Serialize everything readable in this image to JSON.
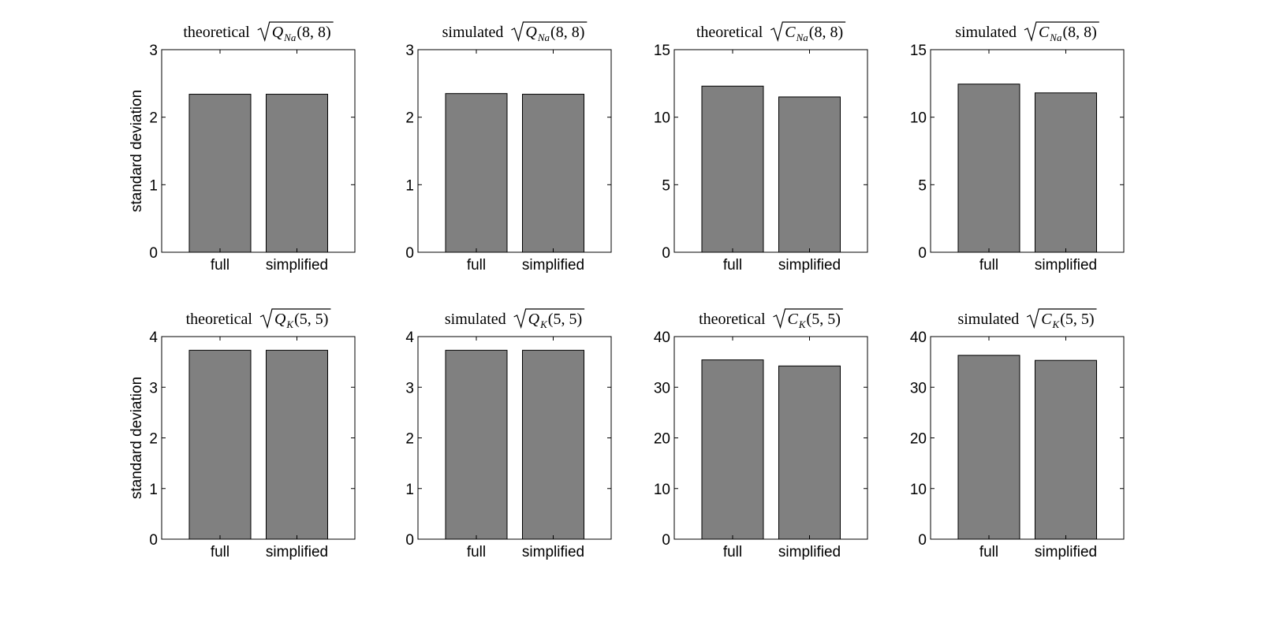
{
  "chart_data": [
    {
      "type": "bar",
      "title": {
        "word": "theoretical",
        "letter": "Q",
        "sub": "Na",
        "args": "(8, 8)"
      },
      "ylabel": "standard deviation",
      "categories": [
        "full",
        "simplified"
      ],
      "values": [
        2.34,
        2.34
      ],
      "ylim": [
        0,
        3
      ],
      "yticks": [
        "0",
        "1",
        "2",
        "3"
      ]
    },
    {
      "type": "bar",
      "title": {
        "word": "simulated",
        "letter": "Q",
        "sub": "Na",
        "args": "(8, 8)"
      },
      "ylabel": "",
      "categories": [
        "full",
        "simplified"
      ],
      "values": [
        2.35,
        2.34
      ],
      "ylim": [
        0,
        3
      ],
      "yticks": [
        "0",
        "1",
        "2",
        "3"
      ]
    },
    {
      "type": "bar",
      "title": {
        "word": "theoretical",
        "letter": "C",
        "sub": "Na",
        "args": "(8, 8)"
      },
      "ylabel": "",
      "categories": [
        "full",
        "simplified"
      ],
      "values": [
        12.3,
        11.5
      ],
      "ylim": [
        0,
        15
      ],
      "yticks": [
        "0",
        "5",
        "10",
        "15"
      ]
    },
    {
      "type": "bar",
      "title": {
        "word": "simulated",
        "letter": "C",
        "sub": "Na",
        "args": "(8, 8)"
      },
      "ylabel": "",
      "categories": [
        "full",
        "simplified"
      ],
      "values": [
        12.45,
        11.8
      ],
      "ylim": [
        0,
        15
      ],
      "yticks": [
        "0",
        "5",
        "10",
        "15"
      ]
    },
    {
      "type": "bar",
      "title": {
        "word": "theoretical",
        "letter": "Q",
        "sub": "K",
        "args": "(5, 5)"
      },
      "ylabel": "standard deviation",
      "categories": [
        "full",
        "simplified"
      ],
      "values": [
        3.73,
        3.73
      ],
      "ylim": [
        0,
        4
      ],
      "yticks": [
        "0",
        "1",
        "2",
        "3",
        "4"
      ]
    },
    {
      "type": "bar",
      "title": {
        "word": "simulated",
        "letter": "Q",
        "sub": "K",
        "args": "(5, 5)"
      },
      "ylabel": "",
      "categories": [
        "full",
        "simplified"
      ],
      "values": [
        3.73,
        3.73
      ],
      "ylim": [
        0,
        4
      ],
      "yticks": [
        "0",
        "1",
        "2",
        "3",
        "4"
      ]
    },
    {
      "type": "bar",
      "title": {
        "word": "theoretical",
        "letter": "C",
        "sub": "K",
        "args": "(5, 5)"
      },
      "ylabel": "",
      "categories": [
        "full",
        "simplified"
      ],
      "values": [
        35.4,
        34.2
      ],
      "ylim": [
        0,
        40
      ],
      "yticks": [
        "0",
        "10",
        "20",
        "30",
        "40"
      ]
    },
    {
      "type": "bar",
      "title": {
        "word": "simulated",
        "letter": "C",
        "sub": "K",
        "args": "(5, 5)"
      },
      "ylabel": "",
      "categories": [
        "full",
        "simplified"
      ],
      "values": [
        36.3,
        35.3
      ],
      "ylim": [
        0,
        40
      ],
      "yticks": [
        "0",
        "10",
        "20",
        "30",
        "40"
      ]
    }
  ],
  "colors": {
    "bar_fill": "#808080",
    "bar_edge": "#000000",
    "axes": "#000000"
  }
}
